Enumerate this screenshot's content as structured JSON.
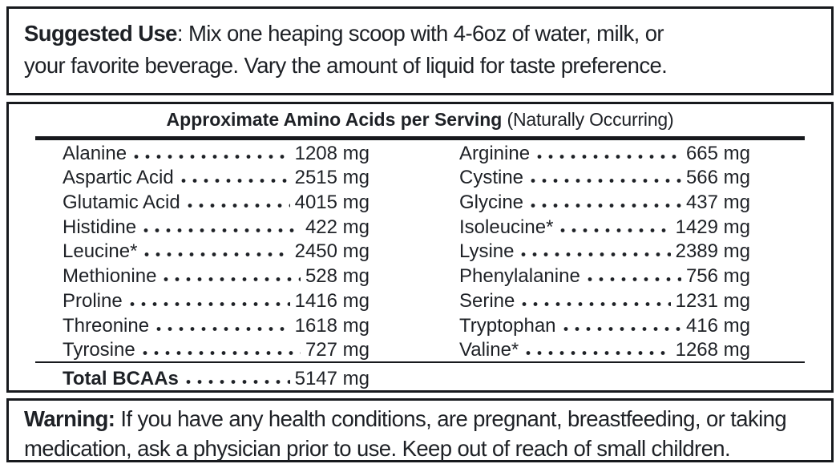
{
  "suggested_use": {
    "label": "Suggested Use",
    "line1_rest": ": Mix one heaping scoop with 4-6oz of water, milk, or",
    "line2": "your favorite beverage. Vary the amount of liquid for taste preference."
  },
  "amino_panel": {
    "title_bold": "Approximate Amino Acids per Serving",
    "title_rest": " (Naturally Occurring)",
    "left": [
      {
        "name": "Alanine",
        "value": "1208 mg"
      },
      {
        "name": "Aspartic Acid",
        "value": "2515 mg"
      },
      {
        "name": "Glutamic Acid",
        "value": "4015 mg"
      },
      {
        "name": "Histidine",
        "value": "422 mg"
      },
      {
        "name": "Leucine*",
        "value": "2450 mg"
      },
      {
        "name": "Methionine",
        "value": "528 mg"
      },
      {
        "name": "Proline",
        "value": "1416 mg"
      },
      {
        "name": "Threonine",
        "value": "1618 mg"
      },
      {
        "name": "Tyrosine",
        "value": "727 mg"
      }
    ],
    "right": [
      {
        "name": "Arginine",
        "value": "665 mg"
      },
      {
        "name": "Cystine",
        "value": "566 mg"
      },
      {
        "name": "Glycine",
        "value": "437 mg"
      },
      {
        "name": "Isoleucine*",
        "value": "1429 mg"
      },
      {
        "name": "Lysine",
        "value": "2389 mg"
      },
      {
        "name": "Phenylalanine",
        "value": "756 mg"
      },
      {
        "name": "Serine",
        "value": "1231 mg"
      },
      {
        "name": "Tryptophan",
        "value": "416 mg"
      },
      {
        "name": "Valine*",
        "value": "1268 mg"
      }
    ],
    "total": {
      "label": "Total BCAAs",
      "value": "5147 mg"
    }
  },
  "warning": {
    "label": "Warning:",
    "line1_rest": " If you have any health conditions, are pregnant, breastfeeding, or taking",
    "line2": "medication, ask a physician prior to use. Keep out of reach of small children."
  },
  "colors": {
    "text": "#1e2126",
    "border": "#17191d",
    "background": "#ffffff"
  }
}
